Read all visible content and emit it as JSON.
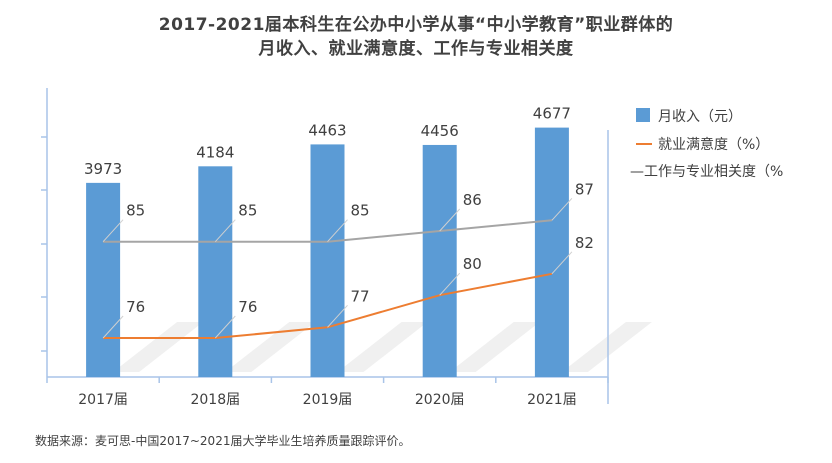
{
  "title_line1": "2017-2021届本科生在公办中小学从事“中小学教育”职业群体的",
  "title_line2": "月收入、就业满意度、工作与专业相关度",
  "source": "数据来源：麦可思-中国2017~2021届大学毕业生培养质量跟踪评价。",
  "legend": {
    "income": "月收入（元）",
    "satisfaction": "就业满意度（%）",
    "relevance": "—工作与专业相关度（%"
  },
  "colors": {
    "bar": "#5b9bd5",
    "satisfaction": "#ed7d31",
    "relevance": "#a5a5a5",
    "axis": "#a9c4e8"
  },
  "chart_data": {
    "type": "bar",
    "categories": [
      "2017届",
      "2018届",
      "2019届",
      "2020届",
      "2021届"
    ],
    "series": [
      {
        "name": "月收入（元）",
        "type": "bar",
        "values": [
          3973,
          4184,
          4463,
          4456,
          4677
        ]
      },
      {
        "name": "就业满意度（%）",
        "type": "line",
        "values": [
          76,
          76,
          77,
          80,
          82
        ]
      },
      {
        "name": "工作与专业相关度（%）",
        "type": "line",
        "values": [
          85,
          85,
          85,
          86,
          87
        ]
      }
    ],
    "grid": false,
    "legend_position": "right"
  }
}
